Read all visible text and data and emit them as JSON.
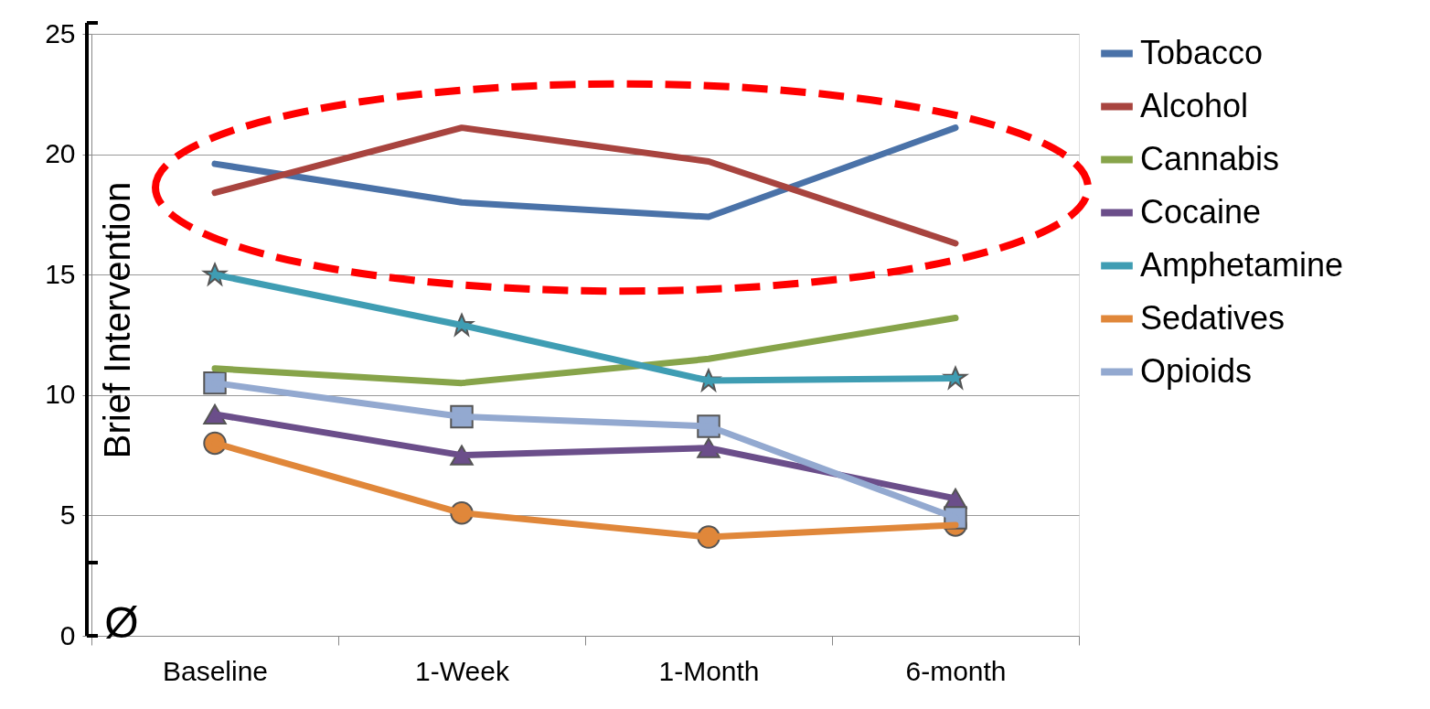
{
  "chart_data": {
    "type": "line",
    "categories": [
      "Baseline",
      "1-Week",
      "1-Month",
      "6-month"
    ],
    "series": [
      {
        "name": "Tobacco",
        "color": "#4a72a8",
        "values": [
          19.6,
          18.0,
          17.4,
          21.1
        ]
      },
      {
        "name": "Alcohol",
        "color": "#a8443f",
        "values": [
          18.4,
          21.1,
          19.7,
          16.3
        ]
      },
      {
        "name": "Cannabis",
        "color": "#87a44a",
        "values": [
          11.1,
          10.5,
          11.5,
          13.2
        ]
      },
      {
        "name": "Cocaine",
        "color": "#6b4e8a",
        "values": [
          9.2,
          7.5,
          7.8,
          5.7
        ],
        "marker": "triangle"
      },
      {
        "name": "Amphetamine",
        "color": "#3f9db3",
        "values": [
          15.0,
          12.9,
          10.6,
          10.7
        ],
        "marker": "star"
      },
      {
        "name": "Sedatives",
        "color": "#e0873a",
        "values": [
          8.0,
          5.1,
          4.1,
          4.6
        ],
        "marker": "circle"
      },
      {
        "name": "Opioids",
        "color": "#93a9d0",
        "values": [
          10.5,
          9.1,
          8.7,
          4.9
        ],
        "marker": "square"
      }
    ],
    "ylim": [
      0,
      25
    ],
    "yticks": [
      0,
      5,
      10,
      15,
      20,
      25
    ],
    "grid": "y",
    "legend": "right",
    "annotations": [
      "Brief Intervention",
      "Ø"
    ]
  }
}
